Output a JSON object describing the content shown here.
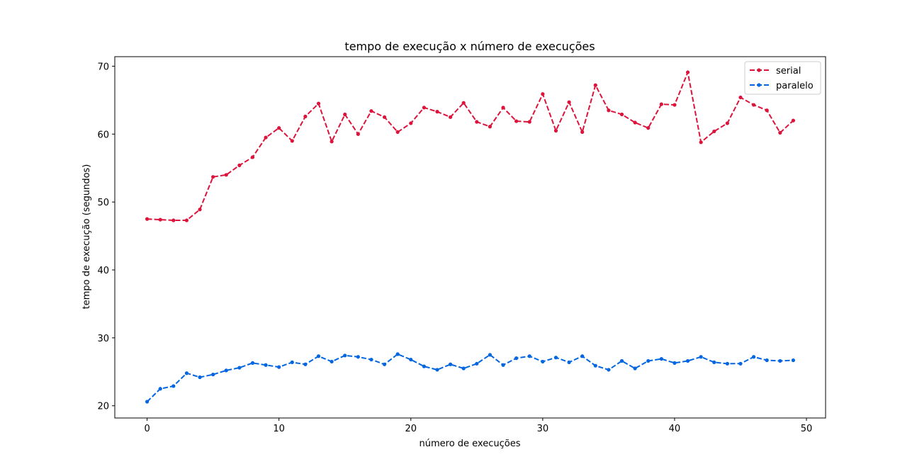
{
  "chart_data": {
    "type": "line",
    "title": "tempo de execução x número de execuções",
    "xlabel": "número de execuções",
    "ylabel": "tempo de execução (segundos)",
    "xlim": [
      -2.45,
      51.45
    ],
    "ylim": [
      18.2,
      71.4
    ],
    "xticks": [
      0,
      10,
      20,
      30,
      40,
      50
    ],
    "yticks": [
      20,
      30,
      40,
      50,
      60,
      70
    ],
    "grid": false,
    "legend_position": "top-right",
    "x": [
      0,
      1,
      2,
      3,
      4,
      5,
      6,
      7,
      8,
      9,
      10,
      11,
      12,
      13,
      14,
      15,
      16,
      17,
      18,
      19,
      20,
      21,
      22,
      23,
      24,
      25,
      26,
      27,
      28,
      29,
      30,
      31,
      32,
      33,
      34,
      35,
      36,
      37,
      38,
      39,
      40,
      41,
      42,
      43,
      44,
      45,
      46,
      47,
      48,
      49
    ],
    "series": [
      {
        "name": "serial",
        "color": "#dc143c",
        "values": [
          47.5,
          47.4,
          47.3,
          47.3,
          48.9,
          53.7,
          54.0,
          55.4,
          56.6,
          59.5,
          60.9,
          59.0,
          62.6,
          64.5,
          58.9,
          62.9,
          60.0,
          63.4,
          62.5,
          60.3,
          61.6,
          63.9,
          63.3,
          62.5,
          64.6,
          61.8,
          61.1,
          63.9,
          61.9,
          61.8,
          65.9,
          60.5,
          64.7,
          60.3,
          67.2,
          63.5,
          62.9,
          61.7,
          60.9,
          64.4,
          64.3,
          69.1,
          58.8,
          60.4,
          61.6,
          65.4,
          64.3,
          63.5,
          60.2,
          62.0
        ]
      },
      {
        "name": "paralelo",
        "color": "#0366e0",
        "values": [
          20.6,
          22.5,
          22.9,
          24.8,
          24.2,
          24.6,
          25.2,
          25.6,
          26.3,
          26.0,
          25.7,
          26.4,
          26.1,
          27.3,
          26.5,
          27.4,
          27.2,
          26.8,
          26.1,
          27.6,
          26.8,
          25.8,
          25.3,
          26.1,
          25.5,
          26.2,
          27.5,
          26.0,
          27.0,
          27.3,
          26.5,
          27.1,
          26.4,
          27.3,
          25.9,
          25.3,
          26.6,
          25.5,
          26.6,
          26.9,
          26.3,
          26.6,
          27.2,
          26.4,
          26.2,
          26.2,
          27.2,
          26.7,
          26.6,
          26.7
        ]
      }
    ]
  }
}
